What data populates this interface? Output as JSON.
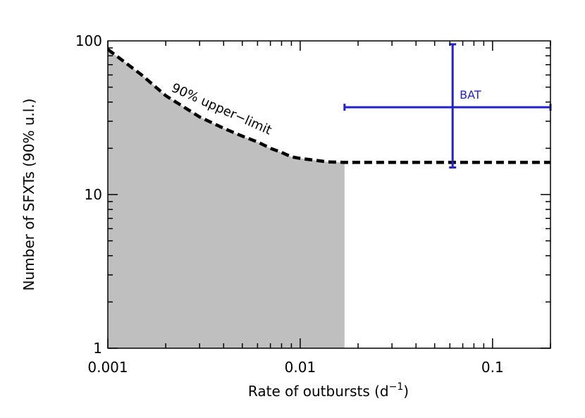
{
  "chart_data": {
    "type": "line",
    "xlabel": "Rate of outbursts (d",
    "xlabel_sup": "−1",
    "xlabel_suffix": ")",
    "ylabel": "Number of SFXTs (90% u.l.)",
    "xscale": "log",
    "yscale": "log",
    "xlim": [
      0.001,
      0.2
    ],
    "ylim": [
      1,
      100
    ],
    "grid": false,
    "x_ticks": [
      {
        "value": 0.001,
        "label": "0.001"
      },
      {
        "value": 0.01,
        "label": "0.01"
      },
      {
        "value": 0.1,
        "label": "0.1"
      }
    ],
    "y_ticks": [
      {
        "value": 1,
        "label": "1"
      },
      {
        "value": 10,
        "label": "10"
      },
      {
        "value": 100,
        "label": "100"
      }
    ],
    "upper_limit": {
      "label": "90% upper−limit",
      "style": "dashed",
      "color": "#000000",
      "x": [
        0.001,
        0.0015,
        0.002,
        0.003,
        0.004,
        0.005,
        0.006,
        0.007,
        0.008,
        0.009,
        0.01,
        0.012,
        0.014,
        0.017,
        0.2
      ],
      "y": [
        88,
        60,
        44,
        32,
        27,
        24,
        22,
        20,
        18.8,
        17.6,
        17.2,
        16.7,
        16.3,
        16.2,
        16.2
      ]
    },
    "shaded_region": {
      "x_max": 0.017,
      "color": "#bfbfbf"
    },
    "measurement": {
      "label": "BAT",
      "color": "#2222cc",
      "x": 0.062,
      "x_err": [
        0.017,
        0.2
      ],
      "y": 37,
      "y_err": [
        15,
        95
      ]
    }
  }
}
